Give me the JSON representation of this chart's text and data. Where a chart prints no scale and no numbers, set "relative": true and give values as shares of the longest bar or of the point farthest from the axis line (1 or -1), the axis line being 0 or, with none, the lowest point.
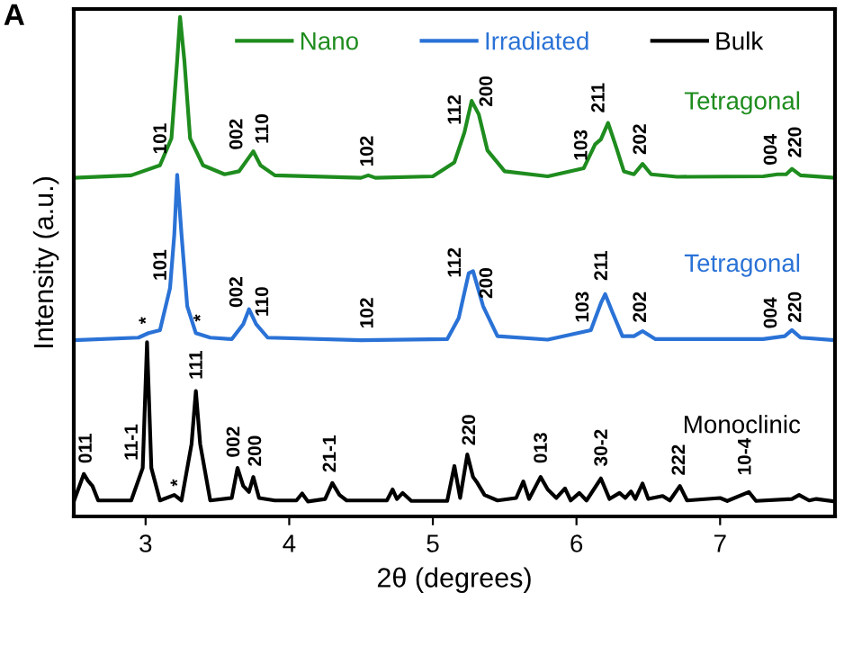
{
  "chart_data": {
    "type": "line",
    "title": "A",
    "xlabel": "2θ (degrees)",
    "ylabel": "Intensity (a.u.)",
    "relative": true,
    "xlim": [
      2.5,
      7.8
    ],
    "xticks": [
      3,
      4,
      5,
      6,
      7
    ],
    "tick_labels": "x",
    "legend": "top",
    "grid": false,
    "series": [
      {
        "name": "Nano",
        "color": "#1e8c1e",
        "x": [
          2.5,
          2.9,
          3.1,
          3.18,
          3.22,
          3.24,
          3.27,
          3.31,
          3.4,
          3.55,
          3.65,
          3.72,
          3.75,
          3.8,
          3.9,
          4.5,
          4.55,
          4.6,
          5.0,
          5.15,
          5.22,
          5.27,
          5.32,
          5.38,
          5.5,
          5.8,
          6.05,
          6.13,
          6.17,
          6.22,
          6.27,
          6.33,
          6.4,
          6.46,
          6.52,
          6.7,
          7.3,
          7.4,
          7.46,
          7.5,
          7.56,
          7.8
        ],
        "values": [
          0.678,
          0.683,
          0.703,
          0.757,
          0.913,
          1.0,
          0.913,
          0.757,
          0.703,
          0.685,
          0.691,
          0.719,
          0.731,
          0.703,
          0.683,
          0.678,
          0.683,
          0.678,
          0.681,
          0.709,
          0.769,
          0.832,
          0.805,
          0.733,
          0.691,
          0.681,
          0.697,
          0.745,
          0.755,
          0.788,
          0.745,
          0.691,
          0.685,
          0.706,
          0.685,
          0.68,
          0.681,
          0.685,
          0.685,
          0.696,
          0.683,
          0.678
        ]
      },
      {
        "name": "Irradiated",
        "color": "#2a72d6",
        "x": [
          2.5,
          2.95,
          3.02,
          3.1,
          3.17,
          3.2,
          3.22,
          3.25,
          3.29,
          3.35,
          3.45,
          3.6,
          3.68,
          3.72,
          3.77,
          3.85,
          4.5,
          5.1,
          5.18,
          5.25,
          5.28,
          5.35,
          5.45,
          5.8,
          6.1,
          6.17,
          6.2,
          6.25,
          6.32,
          6.4,
          6.46,
          6.55,
          7.3,
          7.45,
          7.5,
          7.56,
          7.8
        ],
        "values": [
          0.353,
          0.358,
          0.367,
          0.373,
          0.457,
          0.565,
          0.684,
          0.565,
          0.421,
          0.367,
          0.358,
          0.355,
          0.385,
          0.415,
          0.385,
          0.358,
          0.353,
          0.355,
          0.397,
          0.487,
          0.491,
          0.421,
          0.361,
          0.354,
          0.373,
          0.427,
          0.445,
          0.409,
          0.361,
          0.361,
          0.371,
          0.355,
          0.355,
          0.361,
          0.373,
          0.358,
          0.353
        ]
      },
      {
        "name": "Bulk",
        "color": "#000000",
        "x": [
          2.5,
          2.57,
          2.6,
          2.63,
          2.67,
          2.9,
          2.98,
          3.01,
          3.04,
          3.1,
          3.2,
          3.25,
          3.32,
          3.35,
          3.38,
          3.45,
          3.6,
          3.64,
          3.68,
          3.72,
          3.75,
          3.79,
          3.9,
          4.05,
          4.09,
          4.13,
          4.25,
          4.3,
          4.35,
          4.4,
          4.68,
          4.72,
          4.75,
          4.79,
          4.85,
          5.1,
          5.15,
          5.19,
          5.24,
          5.28,
          5.31,
          5.36,
          5.45,
          5.58,
          5.63,
          5.67,
          5.75,
          5.8,
          5.86,
          5.92,
          5.96,
          6.02,
          6.07,
          6.17,
          6.23,
          6.3,
          6.34,
          6.38,
          6.41,
          6.46,
          6.5,
          6.6,
          6.65,
          6.72,
          6.77,
          7.0,
          7.05,
          7.2,
          7.25,
          7.5,
          7.55,
          7.62,
          7.67,
          7.8
        ],
        "values": [
          0.03,
          0.085,
          0.071,
          0.061,
          0.032,
          0.032,
          0.097,
          0.349,
          0.097,
          0.032,
          0.043,
          0.032,
          0.145,
          0.251,
          0.145,
          0.032,
          0.037,
          0.097,
          0.061,
          0.049,
          0.079,
          0.037,
          0.032,
          0.032,
          0.046,
          0.03,
          0.035,
          0.067,
          0.043,
          0.032,
          0.032,
          0.054,
          0.035,
          0.047,
          0.031,
          0.031,
          0.101,
          0.037,
          0.124,
          0.079,
          0.067,
          0.043,
          0.032,
          0.037,
          0.07,
          0.035,
          0.079,
          0.054,
          0.037,
          0.056,
          0.032,
          0.047,
          0.032,
          0.076,
          0.035,
          0.047,
          0.037,
          0.05,
          0.035,
          0.066,
          0.035,
          0.041,
          0.032,
          0.061,
          0.032,
          0.037,
          0.031,
          0.049,
          0.031,
          0.035,
          0.043,
          0.032,
          0.035,
          0.03
        ]
      }
    ],
    "annotations": [
      "Tetragonal",
      "Tetragonal",
      "Monoclinic",
      {
        "text": "101",
        "x": 3.11,
        "y": 0.71
      },
      {
        "text": "002",
        "x": 3.64,
        "y": 0.719
      },
      {
        "text": "110",
        "x": 3.82,
        "y": 0.719
      },
      {
        "text": "102",
        "x": 4.55,
        "y": 0.685
      },
      {
        "text": "112",
        "x": 5.16,
        "y": 0.718
      },
      {
        "text": "200",
        "x": 5.38,
        "y": 0.805
      },
      {
        "text": "103",
        "x": 6.04,
        "y": 0.696
      },
      {
        "text": "211",
        "x": 6.16,
        "y": 0.793
      },
      {
        "text": "202",
        "x": 6.45,
        "y": 0.709
      },
      {
        "text": "004",
        "x": 7.36,
        "y": 0.688
      },
      {
        "text": "220",
        "x": 7.53,
        "y": 0.703
      },
      {
        "text": "101",
        "x": 3.11,
        "y": 0.385
      },
      {
        "text": "002",
        "x": 3.64,
        "y": 0.403
      },
      {
        "text": "110",
        "x": 3.82,
        "y": 0.368
      },
      {
        "text": "102",
        "x": 4.55,
        "y": 0.361
      },
      {
        "text": "112",
        "x": 5.16,
        "y": 0.463
      },
      {
        "text": "200",
        "x": 5.38,
        "y": 0.403
      },
      {
        "text": "103",
        "x": 6.05,
        "y": 0.37
      },
      {
        "text": "211",
        "x": 6.18,
        "y": 0.457
      },
      {
        "text": "202",
        "x": 6.45,
        "y": 0.373
      },
      {
        "text": "004",
        "x": 7.36,
        "y": 0.361
      },
      {
        "text": "220",
        "x": 7.53,
        "y": 0.373
      },
      {
        "text": "*",
        "x": 3.01,
        "y": 0.37
      },
      {
        "text": "*",
        "x": 3.39,
        "y": 0.375
      },
      {
        "text": "011",
        "x": 2.59,
        "y": 0.091
      },
      {
        "text": "11-1",
        "x": 2.91,
        "y": 0.04
      },
      {
        "text": "111",
        "x": 3.36,
        "y": 0.259
      },
      {
        "text": "002",
        "x": 3.62,
        "y": 0.103
      },
      {
        "text": "200",
        "x": 3.77,
        "y": 0.085
      },
      {
        "text": "21-1",
        "x": 4.29,
        "y": 0.073
      },
      {
        "text": "220",
        "x": 5.26,
        "y": 0.127
      },
      {
        "text": "013",
        "x": 5.76,
        "y": 0.091
      },
      {
        "text": "30-2",
        "x": 6.18,
        "y": 0.085
      },
      {
        "text": "222",
        "x": 6.72,
        "y": 0.067
      },
      {
        "text": "10-4",
        "x": 7.18,
        "y": 0.067
      },
      {
        "text": "*",
        "x": 3.23,
        "y": 0.045
      }
    ]
  }
}
